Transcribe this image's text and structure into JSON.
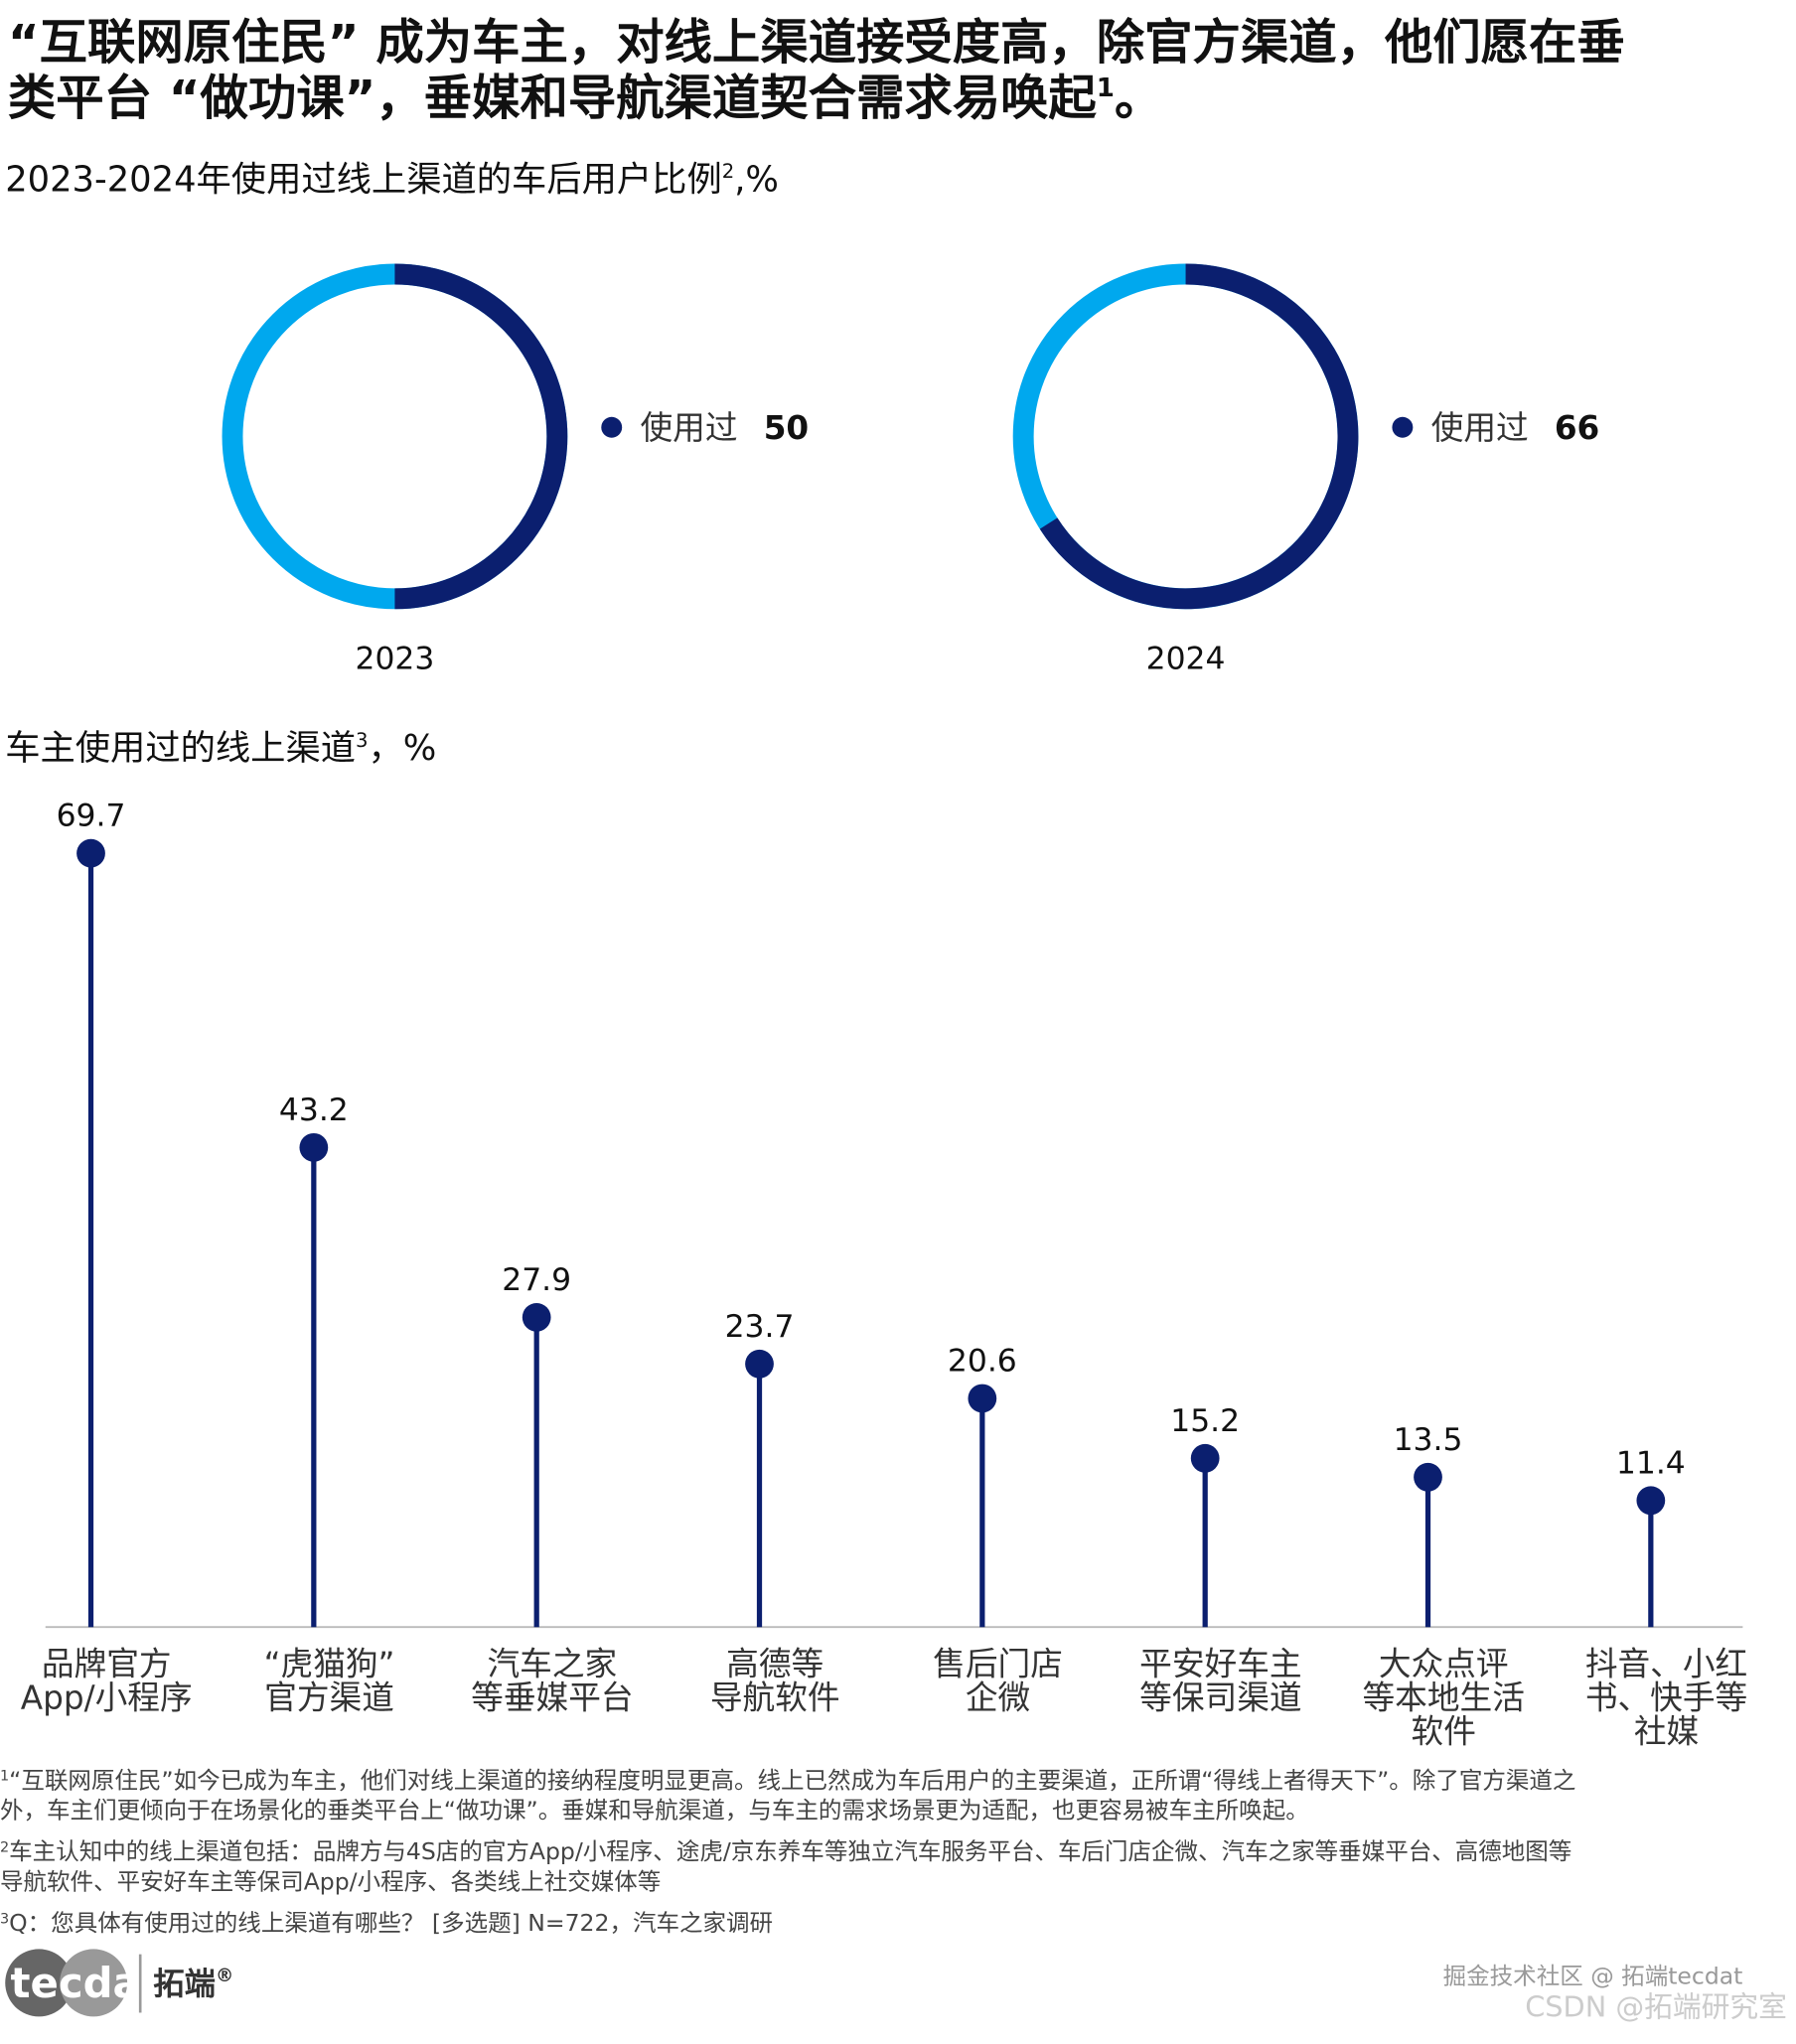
{
  "headline": {
    "lines": [
      "“互联网原住民” 成为车主，对线上渠道接受度高，除官方渠道，他们愿在垂",
      "类平台 “做功课”，垂媒和导航渠道契合需求易唤起"
    ],
    "footnote": "1",
    "end": "。"
  },
  "chart_data": [
    {
      "type": "pie",
      "title": "2023-2024年使用过线上渠道的车后用户比例",
      "title_footnote": "2",
      "title_unit": ",%",
      "xlabel": "2023",
      "categories": [
        "使用过"
      ],
      "values": [
        50
      ],
      "colors": [
        "#0b1f6f"
      ],
      "background_color": "#00a8ee"
    },
    {
      "type": "pie",
      "xlabel": "2024",
      "categories": [
        "使用过"
      ],
      "values": [
        66
      ],
      "colors": [
        "#0b1f6f"
      ],
      "background_color": "#00a8ee"
    },
    {
      "type": "lollipop",
      "title": "车主使用过的线上渠道",
      "title_footnote": "3",
      "title_unit": "，%",
      "categories": [
        [
          "品牌官方",
          "App/小程序"
        ],
        [
          "“虎猫狗”",
          "官方渠道"
        ],
        [
          "汽车之家",
          "等垂媒平台"
        ],
        [
          "高德等",
          "导航软件"
        ],
        [
          "售后门店",
          "企微"
        ],
        [
          "平安好车主",
          "等保司渠道"
        ],
        [
          "大众点评",
          "等本地生活",
          "软件"
        ],
        [
          "抖音、小红",
          "书、快手等",
          "社媒"
        ]
      ],
      "values": [
        69.7,
        43.2,
        27.9,
        23.7,
        20.6,
        15.2,
        13.5,
        11.4
      ],
      "color": "#0b1f6f"
    }
  ],
  "footnotes": [
    {
      "mark": "1",
      "lines": [
        "“互联网原住民”如今已成为车主，他们对线上渠道的接纳程度明显更高。线上已然成为车后用户的主要渠道，正所谓“得线上者得天下”。除了官方渠道之",
        "外，车主们更倾向于在场景化的垂类平台上“做功课”。垂媒和导航渠道，与车主的需求场景更为适配，也更容易被车主所唤起。"
      ]
    },
    {
      "mark": "2",
      "lines": [
        "车主认知中的线上渠道包括：品牌方与4S店的官方App/小程序、途虎/京东养车等独立汽车服务平台、车后门店企微、汽车之家等垂媒平台、高德地图等",
        "导航软件、平安好车主等保司App/小程序、各类线上社交媒体等"
      ]
    },
    {
      "mark": "3",
      "lines": [
        "Q：您具体有使用过的线上渠道有哪些？ [多选题] N=722，汽车之家调研"
      ]
    }
  ],
  "logo": {
    "brand": "tecdat",
    "name": "拓端",
    "mark": "®"
  },
  "watermark": [
    "掘金技术社区 @ 拓端tecdat",
    "CSDN @拓端研究室"
  ]
}
